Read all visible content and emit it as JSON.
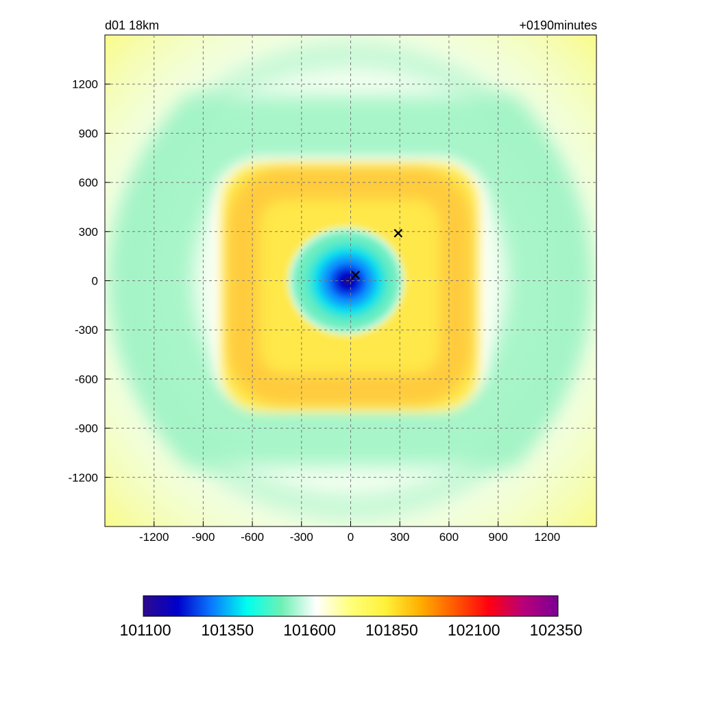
{
  "header": {
    "domain_label": "d01 18km",
    "time_label": "+0190minutes"
  },
  "map": {
    "x_ticks": [
      -1200,
      -900,
      -600,
      -300,
      0,
      300,
      600,
      900,
      1200
    ],
    "y_ticks": [
      1200,
      900,
      600,
      300,
      0,
      -300,
      -600,
      -900,
      -1200
    ],
    "x_range": [
      -1500,
      1500
    ],
    "y_range": [
      -1500,
      1500
    ],
    "grid": true,
    "markers": [
      {
        "name": "cross",
        "x": 30,
        "y": 35
      },
      {
        "name": "cross",
        "x": 290,
        "y": 290
      }
    ]
  },
  "colorbar": {
    "labels": [
      "101100",
      "101350",
      "101600",
      "101850",
      "102100",
      "102350"
    ],
    "range": [
      101100,
      102350
    ],
    "colors": [
      "#2d0a8c",
      "#0000cc",
      "#0a7cff",
      "#00ffee",
      "#6ef0b4",
      "#ffffff",
      "#ffff7a",
      "#fff23a",
      "#ffb000",
      "#ff5a00",
      "#ff0010",
      "#b8007a",
      "#7a0094"
    ]
  }
}
